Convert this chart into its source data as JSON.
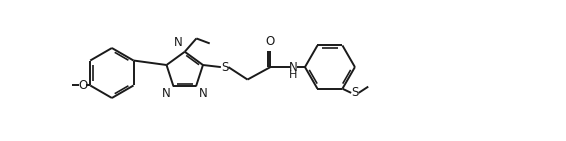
{
  "bg_color": "#ffffff",
  "line_color": "#1a1a1a",
  "line_width": 1.4,
  "font_size": 8.5,
  "fig_width": 5.66,
  "fig_height": 1.41,
  "xlim": [
    0,
    11.32
  ],
  "ylim": [
    -0.5,
    2.82
  ]
}
